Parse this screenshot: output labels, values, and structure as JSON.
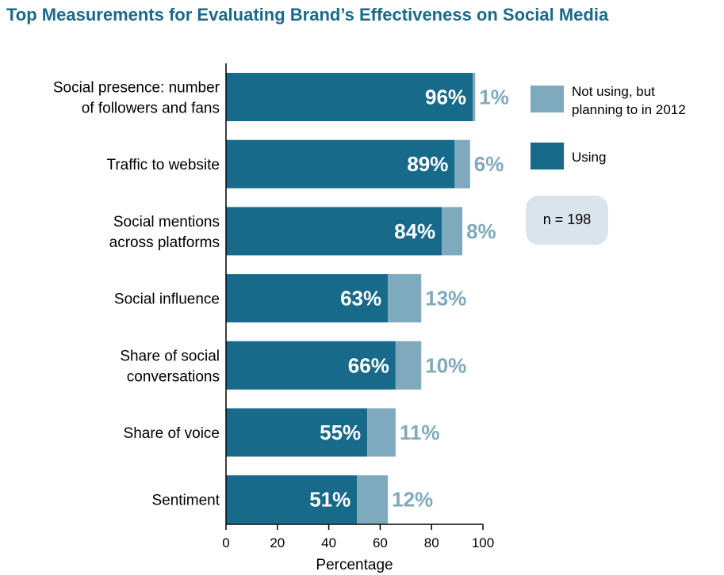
{
  "chart_data": {
    "type": "bar",
    "orientation": "horizontal",
    "stacked": true,
    "title": "Top Measurements for Evaluating Brand’s Effectiveness on Social Media",
    "xlabel": "Percentage",
    "xlim": [
      0,
      100
    ],
    "xticks": [
      "0",
      "20",
      "40",
      "60",
      "80",
      "100"
    ],
    "categories": [
      [
        "Social presence: number",
        "of followers and fans"
      ],
      [
        "Traffic to website"
      ],
      [
        "Social mentions",
        "across platforms"
      ],
      [
        "Social influence"
      ],
      [
        "Share of social",
        "conversations"
      ],
      [
        "Share of voice"
      ],
      [
        "Sentiment"
      ]
    ],
    "series": [
      {
        "name": "Using",
        "color": "#176a8a",
        "values": [
          96,
          89,
          84,
          63,
          66,
          55,
          51
        ],
        "labels": [
          "96%",
          "89%",
          "84%",
          "63%",
          "66%",
          "55%",
          "51%"
        ]
      },
      {
        "name_lines": [
          "Not using, but",
          "planning to in 2012"
        ],
        "color": "#7faabd",
        "values": [
          1,
          6,
          8,
          13,
          10,
          11,
          12
        ],
        "labels": [
          "1%",
          "6%",
          "8%",
          "13%",
          "10%",
          "11%",
          "12%"
        ]
      }
    ],
    "legend_position": "right",
    "note": "n = 198",
    "grid": false
  }
}
